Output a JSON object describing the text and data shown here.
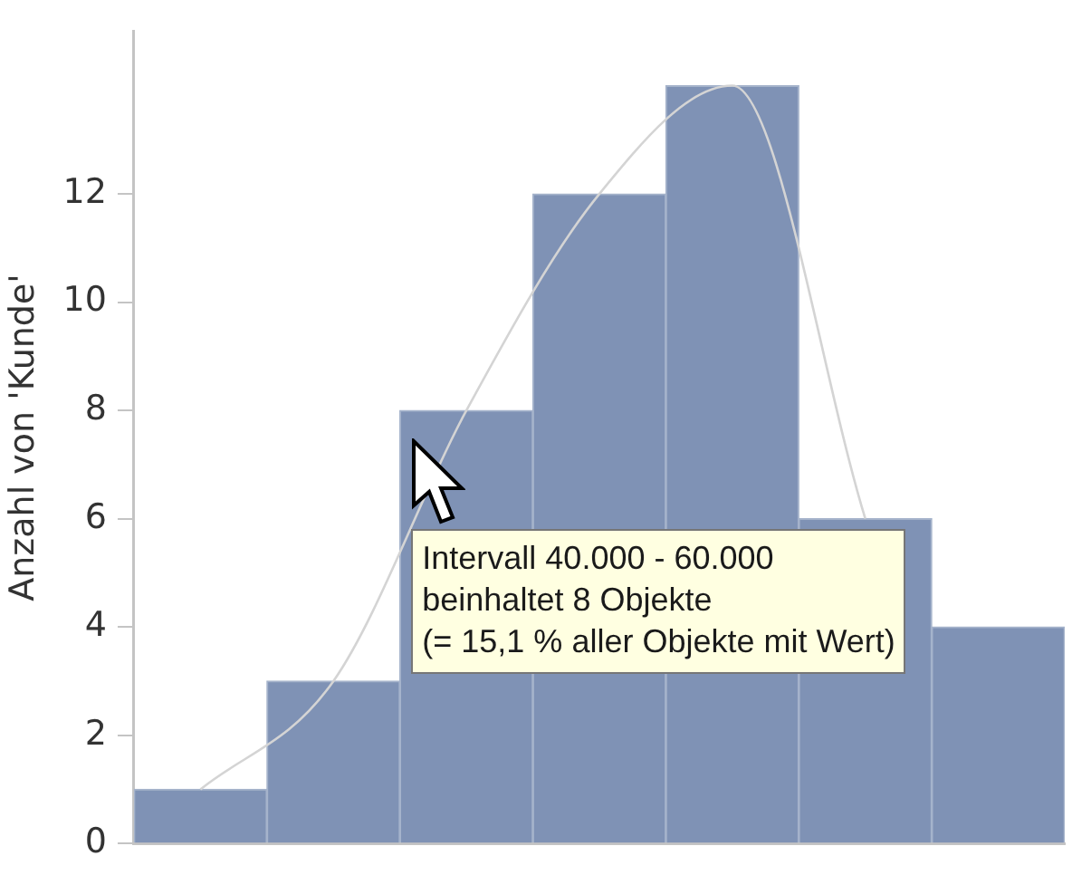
{
  "chart_data": {
    "type": "bar",
    "ylabel": "Anzahl von 'Kunde'",
    "categories": [
      null,
      null,
      null,
      null,
      null,
      null,
      null
    ],
    "series": [
      {
        "values": [
          1,
          3,
          8,
          12,
          14,
          6,
          4
        ],
        "color": "#7f92b5"
      },
      {
        "type": "line",
        "values": [
          1,
          3,
          8,
          12,
          14,
          6,
          null
        ],
        "color": "#d4d4d4"
      }
    ],
    "ylim": [
      0,
      15
    ],
    "yticks": [
      0,
      2,
      4,
      6,
      8,
      10,
      12
    ],
    "tick_labels": "y",
    "annotations": [
      "Intervall 40.000 - 60.000\nbeinhaltet 8 Objekte\n(= 15,1 % aller Objekte mit Wert)"
    ]
  }
}
